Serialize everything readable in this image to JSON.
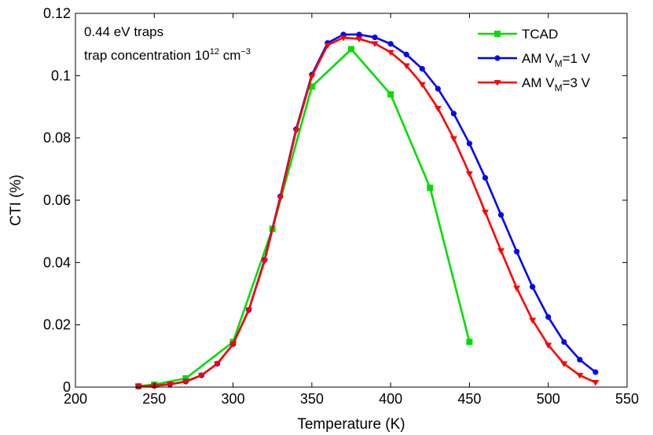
{
  "chart_data": {
    "type": "line",
    "xlabel": "Temperature (K)",
    "ylabel": "CTI (%)",
    "xlim": [
      200,
      550
    ],
    "ylim": [
      0,
      0.12
    ],
    "xticks": [
      200,
      250,
      300,
      350,
      400,
      450,
      500,
      550
    ],
    "yticks": [
      0,
      0.02,
      0.04,
      0.06,
      0.08,
      0.1,
      0.12
    ],
    "xtick_labels": [
      "200",
      "250",
      "300",
      "350",
      "400",
      "450",
      "500",
      "550"
    ],
    "ytick_labels": [
      "0",
      "0.02",
      "0.04",
      "0.06",
      "0.08",
      "0.1",
      "0.12"
    ],
    "grid": false,
    "legend_position": "top-right",
    "annotation": {
      "line1": "0.44 eV traps",
      "line2_prefix": "trap concentration 10",
      "line2_sup": "12",
      "line2_unit": " cm",
      "line2_unit_sup": "−3"
    },
    "series": [
      {
        "name": "TCAD",
        "legend_main": "TCAD",
        "legend_sub": "",
        "legend_tail": "",
        "color": "#00dd00",
        "marker": "square",
        "x": [
          240,
          250,
          270,
          300,
          325,
          350,
          375,
          400,
          425,
          450
        ],
        "y": [
          0.0003,
          0.0008,
          0.0028,
          0.0145,
          0.0508,
          0.0965,
          0.1085,
          0.094,
          0.064,
          0.0145
        ]
      },
      {
        "name": "AM VM=1 V",
        "legend_main": "AM V",
        "legend_sub": "M",
        "legend_tail": "=1 V",
        "color": "#0000ff",
        "marker": "circle",
        "x": [
          240,
          250,
          260,
          270,
          280,
          290,
          300,
          310,
          320,
          330,
          340,
          350,
          360,
          370,
          380,
          390,
          400,
          410,
          420,
          430,
          440,
          450,
          460,
          470,
          480,
          490,
          500,
          510,
          520,
          530
        ],
        "y": [
          0.0002,
          0.0004,
          0.0009,
          0.0018,
          0.0038,
          0.0075,
          0.0138,
          0.0248,
          0.0408,
          0.0612,
          0.0828,
          0.1003,
          0.1105,
          0.1132,
          0.1132,
          0.1123,
          0.1102,
          0.1068,
          0.1022,
          0.0958,
          0.0878,
          0.0782,
          0.0672,
          0.0553,
          0.0435,
          0.0322,
          0.0225,
          0.0145,
          0.0088,
          0.0048
        ]
      },
      {
        "name": "AM VM=3 V",
        "legend_main": "AM V",
        "legend_sub": "M",
        "legend_tail": "=3 V",
        "color": "#ff0000",
        "marker": "triangle-down",
        "x": [
          240,
          250,
          260,
          270,
          280,
          290,
          300,
          310,
          320,
          330,
          340,
          350,
          360,
          370,
          380,
          390,
          400,
          410,
          420,
          430,
          440,
          450,
          460,
          470,
          480,
          490,
          500,
          510,
          520,
          530
        ],
        "y": [
          0.0002,
          0.0004,
          0.0009,
          0.0018,
          0.0038,
          0.0075,
          0.0138,
          0.0248,
          0.0405,
          0.0608,
          0.0823,
          0.0998,
          0.1098,
          0.1122,
          0.1118,
          0.1103,
          0.1075,
          0.1032,
          0.0972,
          0.0895,
          0.0798,
          0.0685,
          0.0562,
          0.0438,
          0.0318,
          0.0215,
          0.0135,
          0.0075,
          0.0038,
          0.0015
        ]
      }
    ]
  }
}
